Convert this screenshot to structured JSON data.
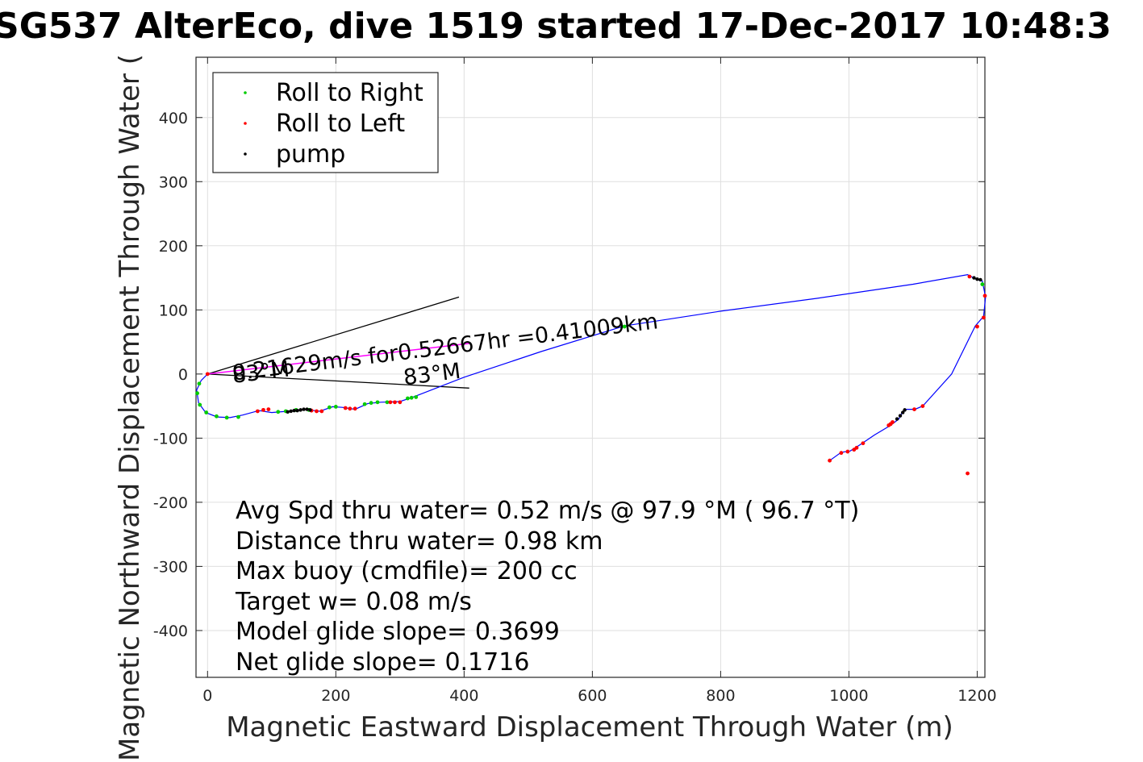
{
  "chart_data": {
    "type": "scatter",
    "title": "SG537 AlterEco, dive 1519 started 17-Dec-2017 10:48:3",
    "xlabel": "Magnetic Eastward Displacement Through Water (m)",
    "ylabel": "Magnetic Northward Displacement Through Water (",
    "xlim": [
      -18,
      1212
    ],
    "ylim": [
      -473,
      494
    ],
    "xticks": [
      0,
      200,
      400,
      600,
      800,
      1000,
      1200
    ],
    "yticks": [
      -400,
      -300,
      -200,
      -100,
      0,
      100,
      200,
      300,
      400
    ],
    "grid": true,
    "legend": {
      "location": "top-left",
      "entries": [
        {
          "label": "Roll to Right",
          "color": "#00cc00"
        },
        {
          "label": "Roll to Left",
          "color": "#ff0000"
        },
        {
          "label": "pump",
          "color": "#000000"
        }
      ]
    },
    "colors": {
      "track": "#0000ff",
      "roll_right": "#00cc00",
      "roll_left": "#ff0000",
      "pump": "#000000",
      "current_line": "#ff00ff",
      "heading_lines": "#000000"
    },
    "track": {
      "name": "glider track",
      "x": [
        0,
        -10,
        -17,
        -14,
        -3,
        15,
        35,
        55,
        80,
        100,
        125,
        150,
        175,
        195,
        210,
        230,
        250,
        270,
        300,
        320,
        400,
        520,
        650,
        800,
        950,
        1100,
        1185,
        1198,
        1208,
        1213,
        1210,
        1197,
        1160,
        1115,
        1103,
        1087,
        1083,
        1078,
        1065,
        1040,
        1018,
        1002,
        988,
        970
      ],
      "y": [
        0,
        -10,
        -25,
        -45,
        -60,
        -67,
        -68,
        -64,
        -57,
        -60,
        -58,
        -55,
        -58,
        -51,
        -52,
        -55,
        -46,
        -44,
        -43,
        -36,
        -5,
        35,
        75,
        98,
        118,
        140,
        155,
        148,
        145,
        120,
        90,
        75,
        0,
        -50,
        -55,
        -55,
        -60,
        -70,
        -80,
        -95,
        -110,
        -120,
        -122,
        -135
      ]
    },
    "roll_right_points": {
      "x": [
        -13,
        -16,
        -12,
        -2,
        14,
        30,
        48,
        110,
        122,
        138,
        158,
        190,
        200,
        245,
        255,
        265,
        280,
        312,
        318,
        325,
        650,
        1208
      ],
      "y": [
        -15,
        -30,
        -48,
        -60,
        -66,
        -68,
        -67,
        -59,
        -58,
        -56,
        -56,
        -52,
        -51,
        -47,
        -45,
        -44,
        -44,
        -38,
        -37,
        -36,
        74,
        140
      ]
    },
    "roll_left_points": {
      "x": [
        0,
        78,
        87,
        95,
        162,
        170,
        178,
        215,
        222,
        230,
        285,
        292,
        300,
        1185,
        1188,
        1212,
        1210,
        1200,
        1115,
        1102,
        1068,
        1065,
        1062,
        1022,
        1012,
        1008,
        998,
        988,
        970
      ],
      "y": [
        0,
        -58,
        -56,
        -55,
        -57,
        -58,
        -58,
        -53,
        -54,
        -54,
        -44,
        -44,
        -44,
        -155,
        152,
        122,
        88,
        74,
        -50,
        -55,
        -75,
        -78,
        -80,
        -108,
        -115,
        -118,
        -121,
        -123,
        -135
      ]
    },
    "pump_points": {
      "x": [
        125,
        130,
        135,
        140,
        145,
        150,
        155,
        160,
        1195,
        1200,
        1205,
        1087,
        1084,
        1080,
        1075
      ],
      "y": [
        -59,
        -58,
        -57,
        -57,
        -56,
        -55,
        -55,
        -56,
        150,
        148,
        147,
        -56,
        -60,
        -65,
        -70
      ]
    },
    "current_vector": {
      "x": [
        0,
        410
      ],
      "y": [
        0,
        48
      ]
    },
    "heading_lines": [
      {
        "x": [
          0,
          392
        ],
        "y": [
          0,
          120
        ]
      },
      {
        "x": [
          0,
          408
        ],
        "y": [
          0,
          -22
        ]
      }
    ],
    "annotations": [
      {
        "text": "0.21629m/s for0.52667hr =0.41009km",
        "x": 40,
        "y": -10,
        "angle": -7
      },
      {
        "text": "83°M",
        "x": 40,
        "y": -14,
        "angle": -7
      },
      {
        "text": "83°M",
        "x": 307,
        "y": -17,
        "angle": -7
      }
    ],
    "stats": [
      "Avg Spd thru water=  0.52 m/s @  97.9 °M ( 96.7 °T)",
      "Distance thru water=  0.98 km",
      "Max buoy (cmdfile)= 200 cc",
      "Target w= 0.08 m/s",
      "Model glide slope= 0.3699",
      "Net glide slope= 0.1716"
    ]
  }
}
